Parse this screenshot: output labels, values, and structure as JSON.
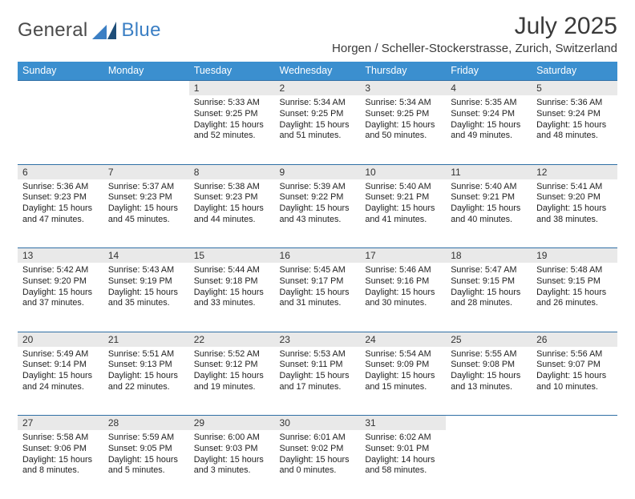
{
  "logo": {
    "general": "General",
    "blue": "Blue"
  },
  "title": "July 2025",
  "location": "Horgen / Scheller-Stockerstrasse, Zurich, Switzerland",
  "colors": {
    "header_bg": "#3b8fcf",
    "header_fg": "#ffffff",
    "daynum_bg": "#e9e9e9",
    "row_border": "#2f6fa5",
    "logo_blue": "#3b7fc4",
    "logo_dark": "#1e4e79",
    "text": "#222222",
    "page_bg": "#ffffff"
  },
  "typography": {
    "title_fontsize": 30,
    "location_fontsize": 15,
    "dayheader_fontsize": 12.5,
    "cell_fontsize": 10.8
  },
  "days_of_week": [
    "Sunday",
    "Monday",
    "Tuesday",
    "Wednesday",
    "Thursday",
    "Friday",
    "Saturday"
  ],
  "weeks": [
    {
      "numbers": [
        "",
        "",
        "1",
        "2",
        "3",
        "4",
        "5"
      ],
      "cells": [
        null,
        null,
        {
          "sunrise": "Sunrise: 5:33 AM",
          "sunset": "Sunset: 9:25 PM",
          "d1": "Daylight: 15 hours",
          "d2": "and 52 minutes."
        },
        {
          "sunrise": "Sunrise: 5:34 AM",
          "sunset": "Sunset: 9:25 PM",
          "d1": "Daylight: 15 hours",
          "d2": "and 51 minutes."
        },
        {
          "sunrise": "Sunrise: 5:34 AM",
          "sunset": "Sunset: 9:25 PM",
          "d1": "Daylight: 15 hours",
          "d2": "and 50 minutes."
        },
        {
          "sunrise": "Sunrise: 5:35 AM",
          "sunset": "Sunset: 9:24 PM",
          "d1": "Daylight: 15 hours",
          "d2": "and 49 minutes."
        },
        {
          "sunrise": "Sunrise: 5:36 AM",
          "sunset": "Sunset: 9:24 PM",
          "d1": "Daylight: 15 hours",
          "d2": "and 48 minutes."
        }
      ]
    },
    {
      "numbers": [
        "6",
        "7",
        "8",
        "9",
        "10",
        "11",
        "12"
      ],
      "cells": [
        {
          "sunrise": "Sunrise: 5:36 AM",
          "sunset": "Sunset: 9:23 PM",
          "d1": "Daylight: 15 hours",
          "d2": "and 47 minutes."
        },
        {
          "sunrise": "Sunrise: 5:37 AM",
          "sunset": "Sunset: 9:23 PM",
          "d1": "Daylight: 15 hours",
          "d2": "and 45 minutes."
        },
        {
          "sunrise": "Sunrise: 5:38 AM",
          "sunset": "Sunset: 9:23 PM",
          "d1": "Daylight: 15 hours",
          "d2": "and 44 minutes."
        },
        {
          "sunrise": "Sunrise: 5:39 AM",
          "sunset": "Sunset: 9:22 PM",
          "d1": "Daylight: 15 hours",
          "d2": "and 43 minutes."
        },
        {
          "sunrise": "Sunrise: 5:40 AM",
          "sunset": "Sunset: 9:21 PM",
          "d1": "Daylight: 15 hours",
          "d2": "and 41 minutes."
        },
        {
          "sunrise": "Sunrise: 5:40 AM",
          "sunset": "Sunset: 9:21 PM",
          "d1": "Daylight: 15 hours",
          "d2": "and 40 minutes."
        },
        {
          "sunrise": "Sunrise: 5:41 AM",
          "sunset": "Sunset: 9:20 PM",
          "d1": "Daylight: 15 hours",
          "d2": "and 38 minutes."
        }
      ]
    },
    {
      "numbers": [
        "13",
        "14",
        "15",
        "16",
        "17",
        "18",
        "19"
      ],
      "cells": [
        {
          "sunrise": "Sunrise: 5:42 AM",
          "sunset": "Sunset: 9:20 PM",
          "d1": "Daylight: 15 hours",
          "d2": "and 37 minutes."
        },
        {
          "sunrise": "Sunrise: 5:43 AM",
          "sunset": "Sunset: 9:19 PM",
          "d1": "Daylight: 15 hours",
          "d2": "and 35 minutes."
        },
        {
          "sunrise": "Sunrise: 5:44 AM",
          "sunset": "Sunset: 9:18 PM",
          "d1": "Daylight: 15 hours",
          "d2": "and 33 minutes."
        },
        {
          "sunrise": "Sunrise: 5:45 AM",
          "sunset": "Sunset: 9:17 PM",
          "d1": "Daylight: 15 hours",
          "d2": "and 31 minutes."
        },
        {
          "sunrise": "Sunrise: 5:46 AM",
          "sunset": "Sunset: 9:16 PM",
          "d1": "Daylight: 15 hours",
          "d2": "and 30 minutes."
        },
        {
          "sunrise": "Sunrise: 5:47 AM",
          "sunset": "Sunset: 9:15 PM",
          "d1": "Daylight: 15 hours",
          "d2": "and 28 minutes."
        },
        {
          "sunrise": "Sunrise: 5:48 AM",
          "sunset": "Sunset: 9:15 PM",
          "d1": "Daylight: 15 hours",
          "d2": "and 26 minutes."
        }
      ]
    },
    {
      "numbers": [
        "20",
        "21",
        "22",
        "23",
        "24",
        "25",
        "26"
      ],
      "cells": [
        {
          "sunrise": "Sunrise: 5:49 AM",
          "sunset": "Sunset: 9:14 PM",
          "d1": "Daylight: 15 hours",
          "d2": "and 24 minutes."
        },
        {
          "sunrise": "Sunrise: 5:51 AM",
          "sunset": "Sunset: 9:13 PM",
          "d1": "Daylight: 15 hours",
          "d2": "and 22 minutes."
        },
        {
          "sunrise": "Sunrise: 5:52 AM",
          "sunset": "Sunset: 9:12 PM",
          "d1": "Daylight: 15 hours",
          "d2": "and 19 minutes."
        },
        {
          "sunrise": "Sunrise: 5:53 AM",
          "sunset": "Sunset: 9:11 PM",
          "d1": "Daylight: 15 hours",
          "d2": "and 17 minutes."
        },
        {
          "sunrise": "Sunrise: 5:54 AM",
          "sunset": "Sunset: 9:09 PM",
          "d1": "Daylight: 15 hours",
          "d2": "and 15 minutes."
        },
        {
          "sunrise": "Sunrise: 5:55 AM",
          "sunset": "Sunset: 9:08 PM",
          "d1": "Daylight: 15 hours",
          "d2": "and 13 minutes."
        },
        {
          "sunrise": "Sunrise: 5:56 AM",
          "sunset": "Sunset: 9:07 PM",
          "d1": "Daylight: 15 hours",
          "d2": "and 10 minutes."
        }
      ]
    },
    {
      "numbers": [
        "27",
        "28",
        "29",
        "30",
        "31",
        "",
        ""
      ],
      "cells": [
        {
          "sunrise": "Sunrise: 5:58 AM",
          "sunset": "Sunset: 9:06 PM",
          "d1": "Daylight: 15 hours",
          "d2": "and 8 minutes."
        },
        {
          "sunrise": "Sunrise: 5:59 AM",
          "sunset": "Sunset: 9:05 PM",
          "d1": "Daylight: 15 hours",
          "d2": "and 5 minutes."
        },
        {
          "sunrise": "Sunrise: 6:00 AM",
          "sunset": "Sunset: 9:03 PM",
          "d1": "Daylight: 15 hours",
          "d2": "and 3 minutes."
        },
        {
          "sunrise": "Sunrise: 6:01 AM",
          "sunset": "Sunset: 9:02 PM",
          "d1": "Daylight: 15 hours",
          "d2": "and 0 minutes."
        },
        {
          "sunrise": "Sunrise: 6:02 AM",
          "sunset": "Sunset: 9:01 PM",
          "d1": "Daylight: 14 hours",
          "d2": "and 58 minutes."
        },
        null,
        null
      ]
    }
  ]
}
